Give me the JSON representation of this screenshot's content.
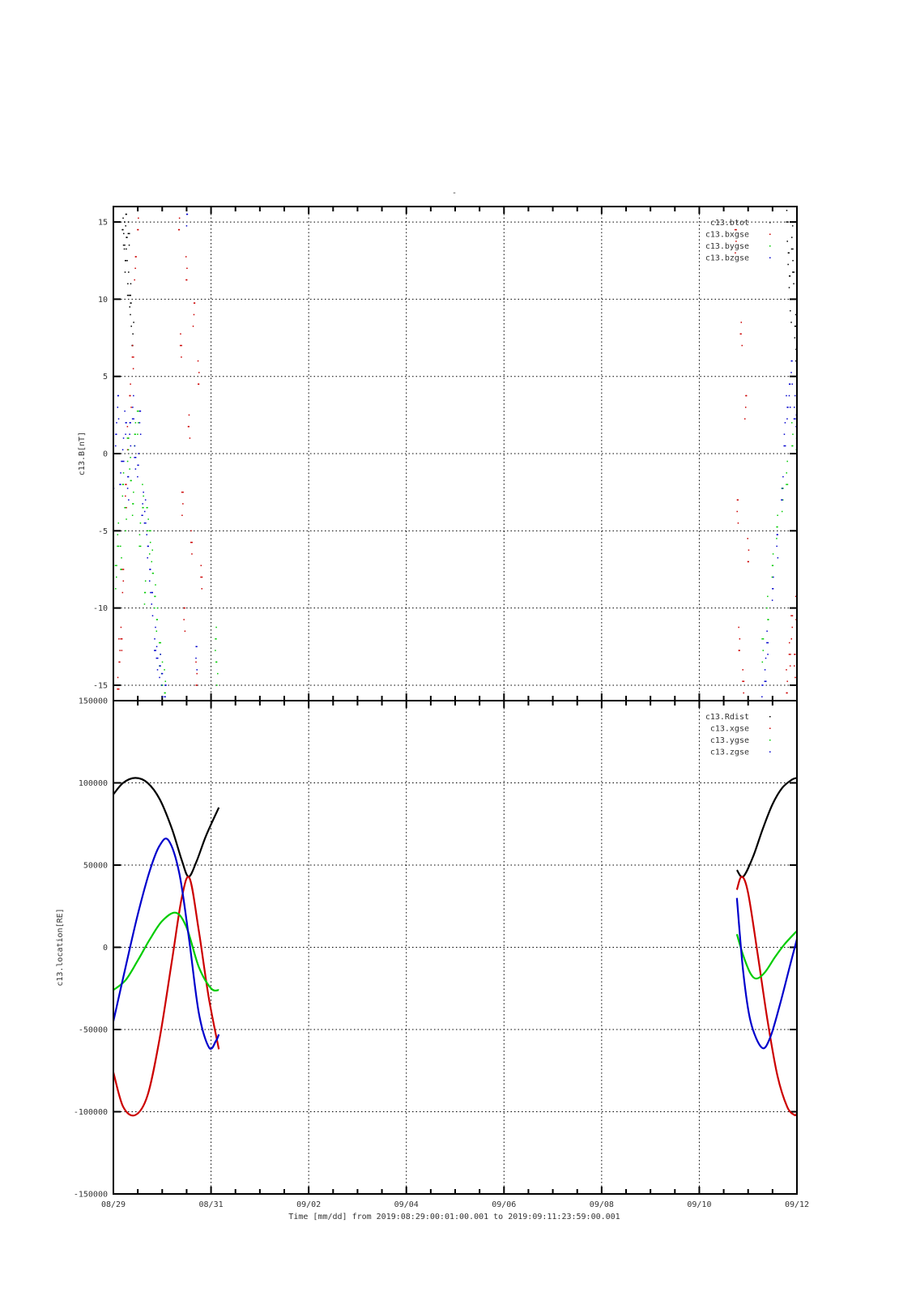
{
  "title": "-",
  "xaxis_caption": "Time [mm/dd]  from 2019:08:29:00:01:00.001  to  2019:09:11:23:59:00.001",
  "chart_data": [
    {
      "type": "scatter",
      "title": "-",
      "ylabel": "c13.B[nT]",
      "xlabel": "",
      "xlim": [
        0,
        14
      ],
      "ylim": [
        -16,
        16
      ],
      "yticks": [
        -15,
        -10,
        -5,
        0,
        5,
        10,
        15
      ],
      "ytick_labels": [
        "-15",
        "-10",
        "-5",
        "0",
        "5",
        "10",
        "15"
      ],
      "grid": true,
      "legend_position": "top-right",
      "series": [
        {
          "name": "c13.btot",
          "color": "#000000",
          "x": [
            0.2,
            0.22,
            0.24,
            0.26,
            0.28,
            0.3,
            0.32,
            0.34,
            0.36,
            0.4,
            13.8,
            13.82,
            13.85,
            13.88,
            13.9,
            13.93,
            13.96,
            13.99
          ],
          "y": [
            15.5,
            14,
            12.5,
            15,
            13,
            11,
            14.5,
            10,
            9,
            8,
            15.5,
            13,
            11,
            9,
            14,
            12,
            8,
            6
          ]
        },
        {
          "name": "c13.bxgse",
          "color": "#cc0000",
          "x": [
            0.08,
            0.1,
            0.13,
            0.16,
            0.2,
            0.25,
            0.3,
            0.35,
            0.4,
            0.45,
            0.5,
            1.35,
            1.38,
            1.42,
            1.45,
            1.5,
            1.55,
            1.6,
            1.65,
            1.7,
            1.75,
            1.8,
            12.75,
            12.78,
            12.82,
            12.86,
            12.9,
            12.95,
            13.0,
            13.8,
            13.85,
            13.9,
            13.95,
            13.99
          ],
          "y": [
            -16,
            -15,
            -13,
            -12,
            -8,
            -3,
            1,
            4,
            6,
            12,
            15.5,
            15,
            7,
            -3,
            -11,
            12,
            2,
            -6,
            9,
            -14,
            5,
            -8,
            14,
            -4,
            -12,
            8,
            -15,
            3,
            -6,
            -15,
            -13,
            -11,
            -14,
            -10
          ]
        },
        {
          "name": "c13.bygse",
          "color": "#00cc00",
          "x": [
            0.0,
            0.05,
            0.1,
            0.15,
            0.2,
            0.25,
            0.3,
            0.35,
            0.4,
            0.45,
            0.5,
            0.55,
            0.6,
            0.65,
            0.7,
            0.75,
            0.8,
            0.85,
            0.9,
            0.95,
            1.0,
            1.05,
            2.1,
            2.12,
            13.3,
            13.4,
            13.5,
            13.6,
            13.7,
            13.8,
            13.9,
            14.0
          ],
          "y": [
            -6,
            -8,
            -5,
            -7,
            -2,
            -4,
            0,
            -1,
            -3,
            1,
            2,
            -5,
            -3,
            -9,
            -4,
            -6,
            -7,
            -9,
            -11,
            -13,
            -14,
            -15,
            -12,
            -14,
            -13,
            -10,
            -7,
            -5,
            -3,
            -1,
            1,
            1
          ]
        },
        {
          "name": "c13.bzgse",
          "color": "#0000cc",
          "x": [
            0.0,
            0.05,
            0.1,
            0.15,
            0.2,
            0.25,
            0.3,
            0.35,
            0.4,
            0.45,
            0.5,
            0.55,
            0.6,
            0.65,
            0.7,
            0.75,
            0.8,
            0.85,
            0.9,
            0.95,
            1.0,
            1.05,
            1.07,
            1.5,
            1.7,
            13.3,
            13.35,
            13.4,
            13.5,
            13.6,
            13.7,
            13.75,
            13.8,
            13.85,
            13.9,
            13.95,
            14.0
          ],
          "y": [
            -2,
            1,
            3,
            -1,
            0,
            2,
            -2,
            1,
            3,
            0,
            -1,
            2,
            -3,
            -4,
            -6,
            -8,
            -10,
            -12,
            -13,
            -14,
            -15,
            -15.5,
            -16,
            15.5,
            -13,
            -16,
            -14,
            -12,
            -9,
            -6,
            -2,
            1,
            3,
            4,
            5,
            3,
            2
          ]
        }
      ]
    },
    {
      "type": "line",
      "ylabel": "c13.location[RE]",
      "xlabel": "Time [mm/dd]",
      "xlim": [
        0,
        14
      ],
      "ylim": [
        -150000,
        150000
      ],
      "xticks": [
        0,
        2,
        4,
        6,
        8,
        10,
        12,
        14
      ],
      "xtick_labels": [
        "08/29",
        "08/31",
        "09/02",
        "09/04",
        "09/06",
        "09/08",
        "09/10",
        "09/12"
      ],
      "yticks": [
        -150000,
        -100000,
        -50000,
        0,
        50000,
        100000,
        150000
      ],
      "ytick_labels": [
        "-150000",
        "-100000",
        "-50000",
        "0",
        "50000",
        "100000",
        "150000"
      ],
      "grid": true,
      "legend_position": "top-right",
      "series": [
        {
          "name": "c13.Rdist",
          "color": "#000000",
          "segments": [
            {
              "x": [
                0,
                0.2,
                0.45,
                0.7,
                0.95,
                1.2,
                1.4,
                1.54,
                1.7,
                1.9,
                2.16
              ],
              "y": [
                93000,
                100000,
                103000,
                100000,
                90000,
                72000,
                53000,
                43000,
                52000,
                68000,
                85000
              ]
            },
            {
              "x": [
                12.77,
                12.9,
                13.1,
                13.3,
                13.5,
                13.7,
                13.9,
                14.0
              ],
              "y": [
                47000,
                43000,
                55000,
                72000,
                87000,
                97000,
                102000,
                103000
              ]
            }
          ]
        },
        {
          "name": "c13.xgse",
          "color": "#cc0000",
          "segments": [
            {
              "x": [
                0,
                0.2,
                0.45,
                0.7,
                0.95,
                1.2,
                1.4,
                1.56,
                1.75,
                1.95,
                2.16
              ],
              "y": [
                -76000,
                -97000,
                -102000,
                -90000,
                -55000,
                -8000,
                30000,
                42000,
                10000,
                -30000,
                -62000
              ]
            },
            {
              "x": [
                12.77,
                12.87,
                13.0,
                13.2,
                13.4,
                13.6,
                13.8,
                13.95,
                14.0
              ],
              "y": [
                35000,
                43000,
                33000,
                -5000,
                -45000,
                -78000,
                -97000,
                -102000,
                -101000
              ]
            }
          ]
        },
        {
          "name": "c13.ygse",
          "color": "#00cc00",
          "segments": [
            {
              "x": [
                0,
                0.25,
                0.5,
                0.75,
                1.0,
                1.28,
                1.5,
                1.75,
                2.0,
                2.16
              ],
              "y": [
                -26000,
                -20000,
                -8000,
                5000,
                16000,
                21000,
                12000,
                -12000,
                -25000,
                -26000
              ]
            },
            {
              "x": [
                12.77,
                12.9,
                13.05,
                13.18,
                13.35,
                13.55,
                13.75,
                14.0
              ],
              "y": [
                8000,
                -5000,
                -16000,
                -19000,
                -15000,
                -6000,
                2000,
                10000
              ]
            }
          ]
        },
        {
          "name": "c13.zgse",
          "color": "#0000cc",
          "segments": [
            {
              "x": [
                0,
                0.25,
                0.5,
                0.75,
                0.95,
                1.13,
                1.35,
                1.55,
                1.75,
                1.96,
                2.1,
                2.16
              ],
              "y": [
                -45000,
                -12000,
                20000,
                47000,
                62000,
                65000,
                45000,
                5000,
                -40000,
                -61000,
                -57000,
                -53000
              ]
            },
            {
              "x": [
                12.77,
                12.9,
                13.05,
                13.28,
                13.45,
                13.65,
                13.85,
                14.0
              ],
              "y": [
                30000,
                -15000,
                -45000,
                -61000,
                -55000,
                -35000,
                -12000,
                5000
              ]
            }
          ]
        }
      ]
    }
  ]
}
